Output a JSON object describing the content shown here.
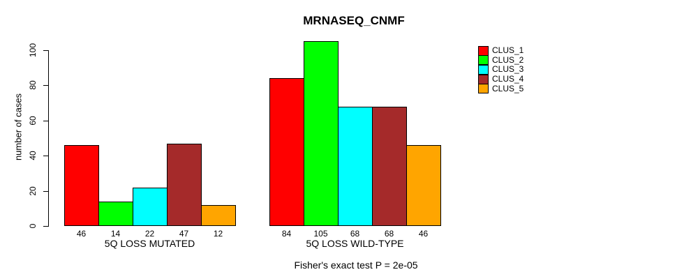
{
  "chart_data": {
    "type": "bar",
    "title": "MRNASEQ_CNMF",
    "ylabel": "number of cases",
    "xlabel": "",
    "ylim": [
      0,
      110
    ],
    "yticks": [
      0,
      20,
      40,
      60,
      80,
      100
    ],
    "grid": false,
    "legend_position": "right",
    "bar_value_labels": true,
    "categories": [
      "5Q LOSS MUTATED",
      "5Q LOSS WILD-TYPE"
    ],
    "series": [
      {
        "name": "CLUS_1",
        "color": "#ff0000",
        "values": [
          46,
          84
        ]
      },
      {
        "name": "CLUS_2",
        "color": "#00ff00",
        "values": [
          14,
          105
        ]
      },
      {
        "name": "CLUS_3",
        "color": "#00ffff",
        "values": [
          22,
          68
        ]
      },
      {
        "name": "CLUS_4",
        "color": "#a52a2a",
        "values": [
          47,
          68
        ]
      },
      {
        "name": "CLUS_5",
        "color": "#ffa500",
        "values": [
          12,
          46
        ]
      }
    ],
    "annotation": "Fisher's exact test P = 2e-05"
  }
}
